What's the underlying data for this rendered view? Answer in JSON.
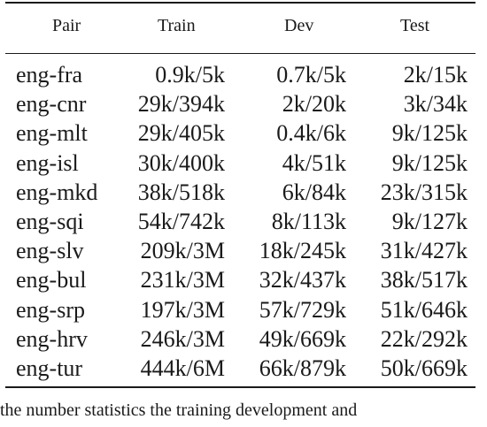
{
  "table": {
    "headers": {
      "pair": "Pair",
      "train": "Train",
      "dev": "Dev",
      "test": "Test"
    },
    "rows": [
      {
        "pair": "eng-fra",
        "train": "0.9k/5k",
        "dev": "0.7k/5k",
        "test": "2k/15k"
      },
      {
        "pair": "eng-cnr",
        "train": "29k/394k",
        "dev": "2k/20k",
        "test": "3k/34k"
      },
      {
        "pair": "eng-mlt",
        "train": "29k/405k",
        "dev": "0.4k/6k",
        "test": "9k/125k"
      },
      {
        "pair": "eng-isl",
        "train": "30k/400k",
        "dev": "4k/51k",
        "test": "9k/125k"
      },
      {
        "pair": "eng-mkd",
        "train": "38k/518k",
        "dev": "6k/84k",
        "test": "23k/315k"
      },
      {
        "pair": "eng-sqi",
        "train": "54k/742k",
        "dev": "8k/113k",
        "test": "9k/127k"
      },
      {
        "pair": "eng-slv",
        "train": "209k/3M",
        "dev": "18k/245k",
        "test": "31k/427k"
      },
      {
        "pair": "eng-bul",
        "train": "231k/3M",
        "dev": "32k/437k",
        "test": "38k/517k"
      },
      {
        "pair": "eng-srp",
        "train": "197k/3M",
        "dev": "57k/729k",
        "test": "51k/646k"
      },
      {
        "pair": "eng-hrv",
        "train": "246k/3M",
        "dev": "49k/669k",
        "test": "22k/292k"
      },
      {
        "pair": "eng-tur",
        "train": "444k/6M",
        "dev": "66k/879k",
        "test": "50k/669k"
      }
    ]
  },
  "caption_fragment": "the  number  statistics  the  training  development  and"
}
